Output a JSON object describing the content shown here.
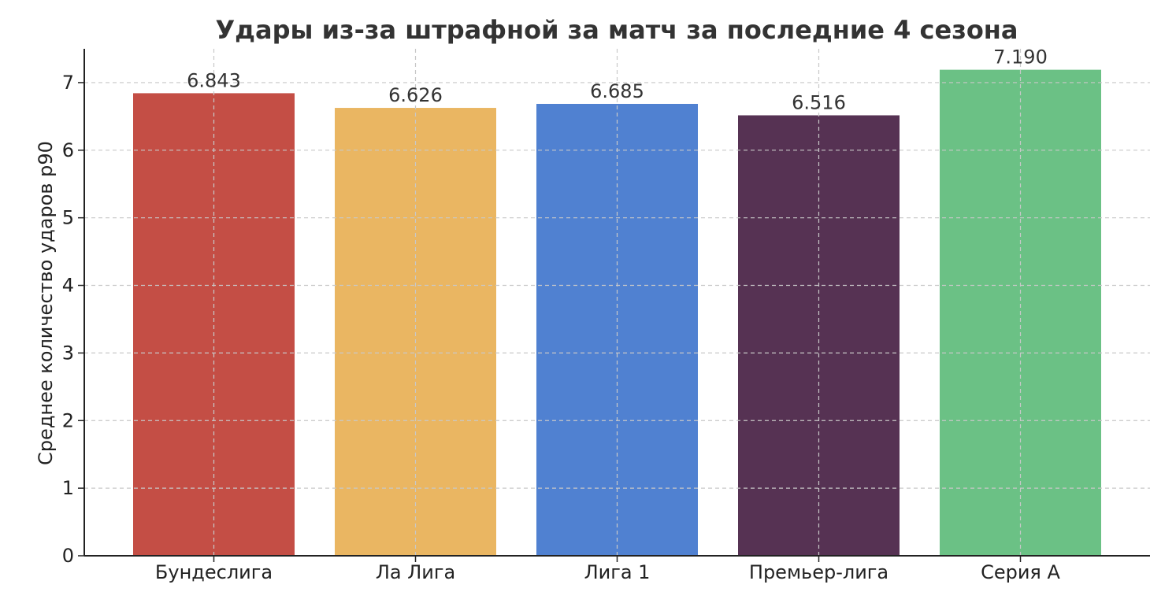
{
  "chart_data": {
    "type": "bar",
    "title": "Удары из-за штрафной за матч за последние 4 сезона",
    "xlabel": "",
    "ylabel": "Среднее количество ударов p90",
    "categories": [
      "Бундеслига",
      "Ла Лига",
      "Лига 1",
      "Премьер-лига",
      "Серия А"
    ],
    "values": [
      6.843,
      6.626,
      6.685,
      6.516,
      7.19
    ],
    "value_labels": [
      "6.843",
      "6.626",
      "6.685",
      "6.516",
      "7.190"
    ],
    "colors": [
      "#c44e45",
      "#eab662",
      "#5081d1",
      "#563253",
      "#6bc185"
    ],
    "ylim": [
      0,
      7.5
    ],
    "yticks": [
      0,
      1,
      2,
      3,
      4,
      5,
      6,
      7
    ],
    "grid": true,
    "legend": "none"
  }
}
